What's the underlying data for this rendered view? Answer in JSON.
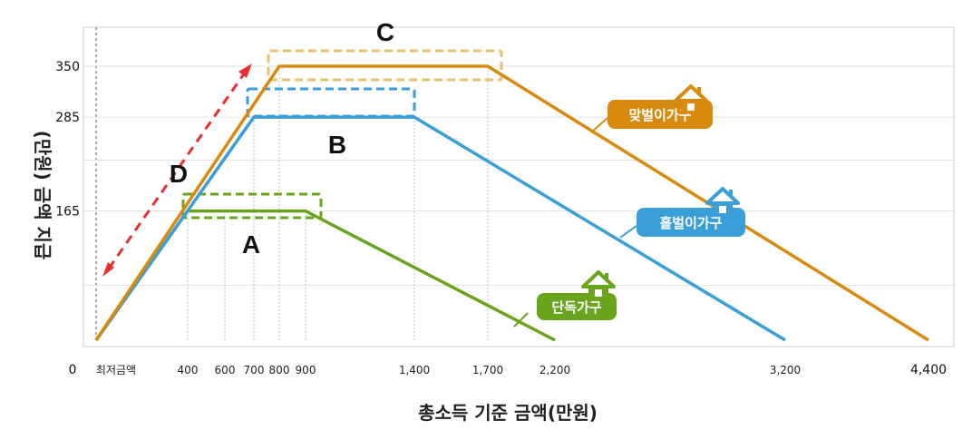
{
  "chart_data": {
    "type": "line",
    "xlabel": "총소득 기준 금액(만원)",
    "ylabel": "(만원) 금액 지급",
    "x_origin_label": "0",
    "x_min_label": "최저금액",
    "x_ticks": [
      400,
      600,
      700,
      800,
      900,
      1400,
      1700,
      2200,
      3200,
      4400
    ],
    "x_tick_labels": [
      "400",
      "600",
      "700",
      "800",
      "900",
      "1,400",
      "1,700",
      "2,200",
      "3,200",
      "4,400"
    ],
    "y_ticks": [
      165,
      285,
      350
    ],
    "y_tick_labels": [
      "165",
      "285",
      "350"
    ],
    "ylim": [
      0,
      350
    ],
    "grid": true,
    "series": [
      {
        "name": "단독가구",
        "color": "#6aa31c",
        "x": [
          0,
          400,
          900,
          2200
        ],
        "y": [
          0,
          165,
          165,
          0
        ]
      },
      {
        "name": "홑벌이가구",
        "color": "#3a9fd8",
        "x": [
          0,
          700,
          1400,
          3200
        ],
        "y": [
          0,
          285,
          285,
          0
        ]
      },
      {
        "name": "맞벌이가구",
        "color": "#d88a0f",
        "x": [
          0,
          800,
          1700,
          4400
        ],
        "y": [
          0,
          350,
          350,
          0
        ]
      }
    ],
    "annotations": [
      {
        "label": "A",
        "color": "#6aa31c",
        "x_range": [
          400,
          900
        ],
        "y": 165
      },
      {
        "label": "B",
        "color": "#3a9fd8",
        "x_range": [
          700,
          1400
        ],
        "y": 285
      },
      {
        "label": "C",
        "color": "#e8c070",
        "x_range": [
          800,
          1700
        ],
        "y": 350
      },
      {
        "label": "D",
        "color": "#e63030"
      }
    ]
  }
}
